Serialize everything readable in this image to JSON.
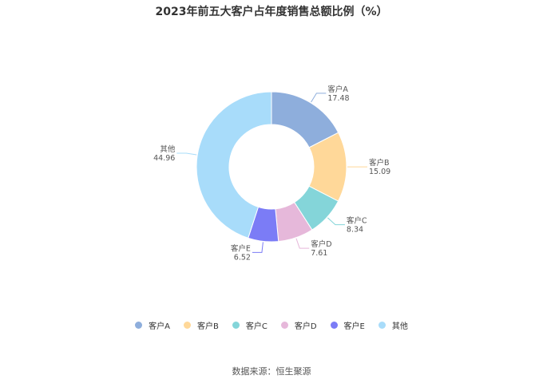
{
  "chart_data": {
    "type": "pie",
    "title": "2023年前五大客户占年度销售总额比例（%）",
    "categories": [
      "客户A",
      "客户B",
      "客户C",
      "客户D",
      "客户E",
      "其他"
    ],
    "values": [
      17.48,
      15.09,
      8.34,
      7.61,
      6.52,
      44.96
    ],
    "value_labels": [
      "17.48",
      "15.09",
      "8.34",
      "7.61",
      "6.52",
      "44.96"
    ],
    "colors": [
      "#8eaedc",
      "#ffd899",
      "#84d5d9",
      "#e6b8da",
      "#7b7cf6",
      "#a8dcfa"
    ],
    "donut": true,
    "legend_position": "bottom",
    "source": "数据来源：恒生聚源"
  }
}
